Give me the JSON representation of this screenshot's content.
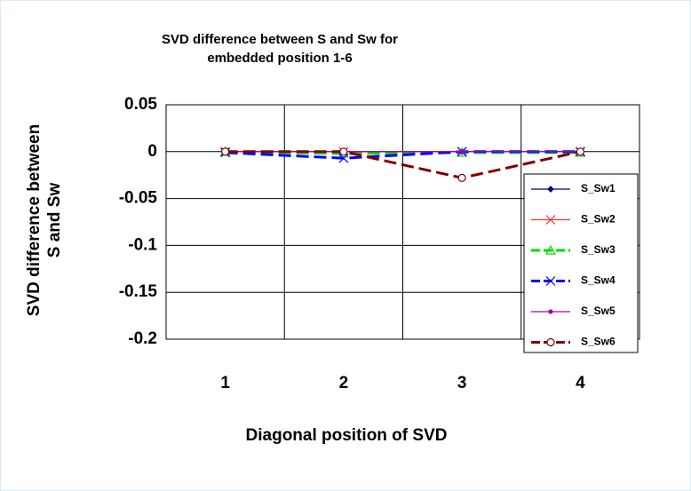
{
  "chart_data": {
    "type": "line",
    "title": "SVD difference between S and Sw for embedded position 1-6",
    "x_label": "Diagonal position of SVD",
    "y_label": "SVD difference between S and Sw",
    "categories": [
      "1",
      "2",
      "3",
      "4"
    ],
    "ylim": [
      -0.2,
      0.05
    ],
    "yticks": [
      0.05,
      0,
      -0.05,
      -0.1,
      -0.15,
      -0.2
    ],
    "grid": true,
    "legend": "right",
    "series": [
      {
        "name": "S_Sw1",
        "color": "#000080",
        "dash": false,
        "marker": "diamond",
        "values": [
          0,
          0,
          0,
          0
        ]
      },
      {
        "name": "S_Sw2",
        "color": "#ff3030",
        "dash": false,
        "marker": "x",
        "values": [
          0,
          0,
          0,
          0
        ]
      },
      {
        "name": "S_Sw3",
        "color": "#00dd00",
        "dash": true,
        "marker": "triangle",
        "values": [
          0,
          -0.002,
          -0.001,
          -0.001
        ]
      },
      {
        "name": "S_Sw4",
        "color": "#0000ff",
        "dash": true,
        "marker": "x",
        "values": [
          -0.001,
          -0.007,
          0,
          0
        ]
      },
      {
        "name": "S_Sw5",
        "color": "#aa00aa",
        "dash": false,
        "marker": "dot",
        "values": [
          0,
          0,
          0,
          0
        ]
      },
      {
        "name": "S_Sw6",
        "color": "#800000",
        "dash": true,
        "marker": "circle",
        "values": [
          0,
          0,
          -0.028,
          0
        ]
      }
    ]
  }
}
